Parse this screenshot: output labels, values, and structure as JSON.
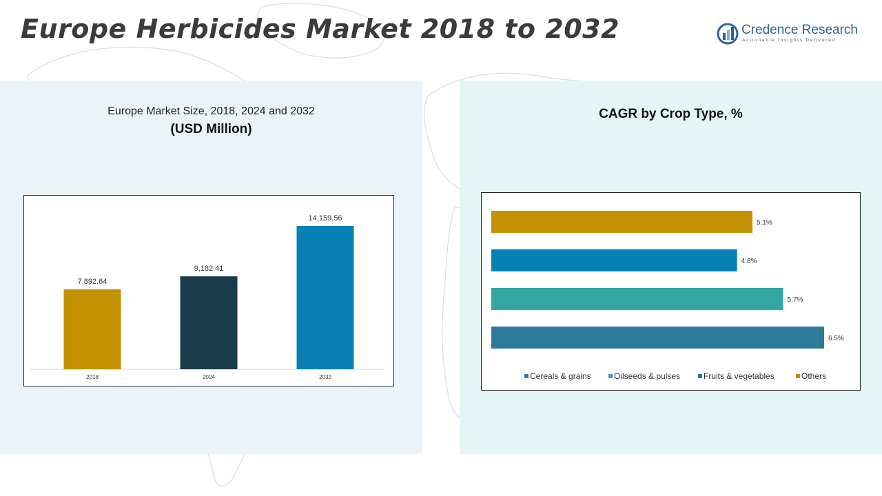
{
  "header": {
    "title": "Europe Herbicides Market 2018 to 2032",
    "logo_name": "Credence Research",
    "logo_tagline": "Actionable Insights Delivered"
  },
  "left_panel": {
    "title": "Europe Market Size, 2018, 2024 and 2032",
    "subtitle": "(USD Million)"
  },
  "right_panel": {
    "title": "CAGR by Crop Type, %"
  },
  "chart_data": [
    {
      "type": "bar",
      "title": "Europe Market Size, 2018, 2024 and 2032",
      "ylabel": "USD Million",
      "categories": [
        "2018",
        "2024",
        "2032"
      ],
      "values": [
        7892.64,
        9182.41,
        14159.56
      ],
      "value_labels": [
        "7,892.64",
        "9,182.41",
        "14,159.56"
      ],
      "colors": [
        "#c29000",
        "#1a3b4c",
        "#0980b5"
      ],
      "ylim": [
        0,
        14159.56
      ],
      "grid": false
    },
    {
      "type": "bar",
      "orientation": "horizontal",
      "title": "CAGR by Crop Type, %",
      "categories": [
        "Cereals & grains",
        "Oilseeds & pulses",
        "Fruits & vegetables",
        "Others"
      ],
      "values": [
        6.5,
        5.7,
        4.8,
        5.1
      ],
      "value_labels": [
        "6.5%",
        "5.7%",
        "4.8%",
        "5.1%"
      ],
      "colors": [
        "#2f7a9b",
        "#33a6a2",
        "#0680b5",
        "#c29000"
      ],
      "legend": "bottom",
      "xlim": [
        0,
        6.5
      ],
      "grid": false
    }
  ]
}
